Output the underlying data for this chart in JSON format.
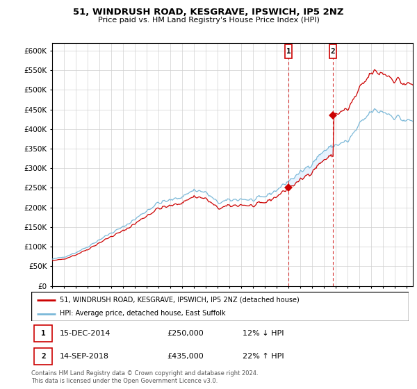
{
  "title": "51, WINDRUSH ROAD, KESGRAVE, IPSWICH, IP5 2NZ",
  "subtitle": "Price paid vs. HM Land Registry's House Price Index (HPI)",
  "ylabel_ticks": [
    "£0",
    "£50K",
    "£100K",
    "£150K",
    "£200K",
    "£250K",
    "£300K",
    "£350K",
    "£400K",
    "£450K",
    "£500K",
    "£550K",
    "£600K"
  ],
  "ytick_vals": [
    0,
    50000,
    100000,
    150000,
    200000,
    250000,
    300000,
    350000,
    400000,
    450000,
    500000,
    550000,
    600000
  ],
  "ylim": [
    0,
    620000
  ],
  "xlim_start": 1995.0,
  "xlim_end": 2025.5,
  "sale1_x": 2015.0,
  "sale1_y": 250000,
  "sale2_x": 2018.75,
  "sale2_y": 435000,
  "legend_line1": "51, WINDRUSH ROAD, KESGRAVE, IPSWICH, IP5 2NZ (detached house)",
  "legend_line2": "HPI: Average price, detached house, East Suffolk",
  "table_entries": [
    {
      "num": "1",
      "date": "15-DEC-2014",
      "price": "£250,000",
      "pct": "12% ↓ HPI"
    },
    {
      "num": "2",
      "date": "14-SEP-2018",
      "price": "£435,000",
      "pct": "22% ↑ HPI"
    }
  ],
  "footer": "Contains HM Land Registry data © Crown copyright and database right 2024.\nThis data is licensed under the Open Government Licence v3.0.",
  "hpi_color": "#7ab8d8",
  "sale_color": "#cc0000",
  "shade_color": "#ddeeff",
  "marker_color": "#cc0000",
  "box_color": "#cc0000",
  "bg_color": "#ffffff"
}
